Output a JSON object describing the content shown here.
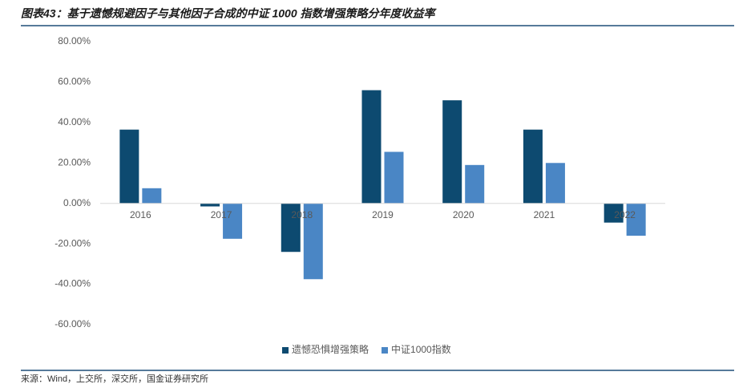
{
  "chart_data": {
    "type": "bar",
    "title": "图表43：基于遗憾规避因子与其他因子合成的中证 1000 指数增强策略分年度收益率",
    "source": "来源：Wind，上交所，深交所，国金证券研究所",
    "categories": [
      "2016",
      "2017",
      "2018",
      "2019",
      "2020",
      "2021",
      "2022"
    ],
    "series": [
      {
        "name": "遗憾恐惧增强策略",
        "color": "#0d4a70",
        "values": [
          36.5,
          -1.5,
          -24,
          56,
          51,
          36.5,
          -9.5
        ]
      },
      {
        "name": "中证1000指数",
        "color": "#4a86c5",
        "values": [
          7.5,
          -17.5,
          -37.5,
          25.5,
          19,
          20,
          -16
        ]
      }
    ],
    "ylim": [
      -60,
      80
    ],
    "yticks": [
      {
        "value": -60,
        "label": "-60.00%"
      },
      {
        "value": -40,
        "label": "-40.00%"
      },
      {
        "value": -20,
        "label": "-20.00%"
      },
      {
        "value": 0,
        "label": "0.00%"
      },
      {
        "value": 20,
        "label": "20.00%"
      },
      {
        "value": 40,
        "label": "40.00%"
      },
      {
        "value": 60,
        "label": "60.00%"
      },
      {
        "value": 80,
        "label": "80.00%"
      }
    ],
    "legend": "bottom"
  }
}
